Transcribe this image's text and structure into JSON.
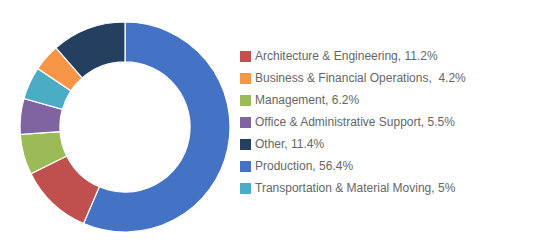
{
  "chart_data": {
    "type": "pie",
    "categories": [
      "Production, 56.4%",
      "Architecture & Engineering, 11.2%",
      "Management, 6.2%",
      "Office & Administrative Support, 5.5%",
      "Transportation & Material Moving, 5%",
      "Business & Financial Operations,  4.2%",
      "Other, 11.4%"
    ],
    "values": [
      56.4,
      11.2,
      6.2,
      5.5,
      5.0,
      4.2,
      11.4
    ],
    "colors": [
      "#4472C4",
      "#C0504D",
      "#9BBB59",
      "#8064A2",
      "#4BACC6",
      "#F79646",
      "#243F60"
    ],
    "legend": "right"
  }
}
